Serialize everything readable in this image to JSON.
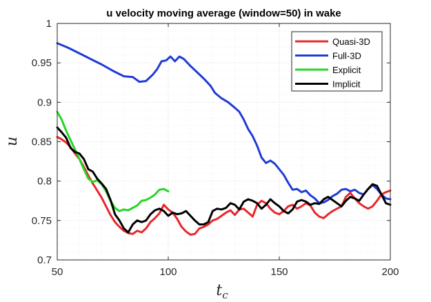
{
  "chart_data": {
    "type": "line",
    "title": "u velocity moving average (window=50) in wake",
    "xlabel": {
      "base": "t",
      "sub": "c"
    },
    "ylabel": "u",
    "xlim": [
      50,
      200
    ],
    "ylim": [
      0.7,
      1.0
    ],
    "xticks": [
      50,
      100,
      150,
      200
    ],
    "yticks": [
      0.7,
      0.75,
      0.8,
      0.85,
      0.9,
      0.95,
      1
    ],
    "xtick_labels": [
      "50",
      "100",
      "150",
      "200"
    ],
    "ytick_labels": [
      "0.7",
      "0.75",
      "0.8",
      "0.85",
      "0.9",
      "0.95",
      "1"
    ],
    "grid": true,
    "legend_position": "top-right",
    "series": [
      {
        "name": "Quasi-3D",
        "color": "#e8262a",
        "points": [
          [
            50,
            0.856
          ],
          [
            52,
            0.853
          ],
          [
            54,
            0.849
          ],
          [
            56,
            0.843
          ],
          [
            58,
            0.835
          ],
          [
            60,
            0.828
          ],
          [
            62,
            0.818
          ],
          [
            64,
            0.807
          ],
          [
            66,
            0.797
          ],
          [
            68,
            0.788
          ],
          [
            70,
            0.779
          ],
          [
            72,
            0.768
          ],
          [
            74,
            0.757
          ],
          [
            76,
            0.748
          ],
          [
            78,
            0.742
          ],
          [
            80,
            0.737
          ],
          [
            82,
            0.734
          ],
          [
            84,
            0.733
          ],
          [
            86,
            0.737
          ],
          [
            88,
            0.735
          ],
          [
            90,
            0.74
          ],
          [
            92,
            0.748
          ],
          [
            94,
            0.753
          ],
          [
            96,
            0.759
          ],
          [
            98,
            0.77
          ],
          [
            100,
            0.764
          ],
          [
            102,
            0.76
          ],
          [
            104,
            0.752
          ],
          [
            106,
            0.742
          ],
          [
            108,
            0.736
          ],
          [
            110,
            0.732
          ],
          [
            112,
            0.733
          ],
          [
            114,
            0.74
          ],
          [
            116,
            0.742
          ],
          [
            118,
            0.745
          ],
          [
            120,
            0.75
          ],
          [
            122,
            0.752
          ],
          [
            124,
            0.756
          ],
          [
            126,
            0.76
          ],
          [
            128,
            0.763
          ],
          [
            130,
            0.757
          ],
          [
            132,
            0.764
          ],
          [
            134,
            0.765
          ],
          [
            136,
            0.76
          ],
          [
            138,
            0.755
          ],
          [
            140,
            0.77
          ],
          [
            142,
            0.775
          ],
          [
            144,
            0.772
          ],
          [
            146,
            0.765
          ],
          [
            148,
            0.76
          ],
          [
            150,
            0.758
          ],
          [
            152,
            0.762
          ],
          [
            154,
            0.768
          ],
          [
            156,
            0.77
          ],
          [
            158,
            0.765
          ],
          [
            160,
            0.768
          ],
          [
            162,
            0.772
          ],
          [
            164,
            0.769
          ],
          [
            166,
            0.76
          ],
          [
            168,
            0.755
          ],
          [
            170,
            0.753
          ],
          [
            172,
            0.758
          ],
          [
            174,
            0.762
          ],
          [
            176,
            0.765
          ],
          [
            178,
            0.768
          ],
          [
            180,
            0.78
          ],
          [
            182,
            0.785
          ],
          [
            184,
            0.778
          ],
          [
            186,
            0.772
          ],
          [
            188,
            0.768
          ],
          [
            190,
            0.765
          ],
          [
            192,
            0.768
          ],
          [
            194,
            0.775
          ],
          [
            196,
            0.783
          ],
          [
            198,
            0.786
          ],
          [
            200,
            0.788
          ]
        ]
      },
      {
        "name": "Full-3D",
        "color": "#1f3ad6",
        "points": [
          [
            50,
            0.975
          ],
          [
            55,
            0.969
          ],
          [
            60,
            0.962
          ],
          [
            65,
            0.955
          ],
          [
            70,
            0.948
          ],
          [
            75,
            0.94
          ],
          [
            80,
            0.933
          ],
          [
            84,
            0.932
          ],
          [
            87,
            0.926
          ],
          [
            90,
            0.927
          ],
          [
            93,
            0.935
          ],
          [
            95,
            0.942
          ],
          [
            97,
            0.952
          ],
          [
            99,
            0.953
          ],
          [
            101,
            0.958
          ],
          [
            103,
            0.952
          ],
          [
            105,
            0.958
          ],
          [
            107,
            0.955
          ],
          [
            110,
            0.946
          ],
          [
            113,
            0.938
          ],
          [
            116,
            0.93
          ],
          [
            119,
            0.921
          ],
          [
            121,
            0.912
          ],
          [
            124,
            0.905
          ],
          [
            127,
            0.9
          ],
          [
            130,
            0.893
          ],
          [
            132,
            0.888
          ],
          [
            134,
            0.878
          ],
          [
            136,
            0.866
          ],
          [
            138,
            0.857
          ],
          [
            140,
            0.845
          ],
          [
            142,
            0.83
          ],
          [
            144,
            0.823
          ],
          [
            146,
            0.826
          ],
          [
            148,
            0.822
          ],
          [
            150,
            0.815
          ],
          [
            152,
            0.808
          ],
          [
            154,
            0.798
          ],
          [
            156,
            0.789
          ],
          [
            158,
            0.79
          ],
          [
            160,
            0.786
          ],
          [
            162,
            0.788
          ],
          [
            164,
            0.782
          ],
          [
            166,
            0.778
          ],
          [
            168,
            0.772
          ],
          [
            170,
            0.773
          ],
          [
            172,
            0.776
          ],
          [
            174,
            0.781
          ],
          [
            176,
            0.784
          ],
          [
            178,
            0.789
          ],
          [
            180,
            0.79
          ],
          [
            182,
            0.787
          ],
          [
            184,
            0.789
          ],
          [
            186,
            0.785
          ],
          [
            188,
            0.783
          ],
          [
            190,
            0.79
          ],
          [
            192,
            0.795
          ],
          [
            194,
            0.79
          ],
          [
            196,
            0.783
          ],
          [
            198,
            0.778
          ],
          [
            200,
            0.777
          ]
        ]
      },
      {
        "name": "Explicit",
        "color": "#25d625",
        "points": [
          [
            50,
            0.888
          ],
          [
            52,
            0.878
          ],
          [
            54,
            0.864
          ],
          [
            56,
            0.852
          ],
          [
            58,
            0.84
          ],
          [
            60,
            0.828
          ],
          [
            62,
            0.815
          ],
          [
            64,
            0.803
          ],
          [
            66,
            0.799
          ],
          [
            68,
            0.801
          ],
          [
            70,
            0.796
          ],
          [
            72,
            0.787
          ],
          [
            74,
            0.775
          ],
          [
            76,
            0.766
          ],
          [
            78,
            0.762
          ],
          [
            80,
            0.764
          ],
          [
            82,
            0.763
          ],
          [
            84,
            0.766
          ],
          [
            86,
            0.769
          ],
          [
            88,
            0.775
          ],
          [
            90,
            0.776
          ],
          [
            92,
            0.779
          ],
          [
            94,
            0.783
          ],
          [
            96,
            0.789
          ],
          [
            98,
            0.79
          ],
          [
            100,
            0.787
          ]
        ]
      },
      {
        "name": "Implicit",
        "color": "#000000",
        "points": [
          [
            50,
            0.868
          ],
          [
            52,
            0.862
          ],
          [
            54,
            0.855
          ],
          [
            56,
            0.842
          ],
          [
            58,
            0.837
          ],
          [
            60,
            0.835
          ],
          [
            62,
            0.828
          ],
          [
            64,
            0.815
          ],
          [
            66,
            0.812
          ],
          [
            68,
            0.803
          ],
          [
            70,
            0.797
          ],
          [
            72,
            0.79
          ],
          [
            74,
            0.776
          ],
          [
            76,
            0.758
          ],
          [
            78,
            0.75
          ],
          [
            80,
            0.74
          ],
          [
            82,
            0.735
          ],
          [
            84,
            0.745
          ],
          [
            86,
            0.75
          ],
          [
            88,
            0.748
          ],
          [
            90,
            0.75
          ],
          [
            92,
            0.758
          ],
          [
            94,
            0.763
          ],
          [
            96,
            0.765
          ],
          [
            98,
            0.762
          ],
          [
            100,
            0.756
          ],
          [
            102,
            0.76
          ],
          [
            104,
            0.758
          ],
          [
            106,
            0.759
          ],
          [
            108,
            0.762
          ],
          [
            110,
            0.756
          ],
          [
            112,
            0.75
          ],
          [
            114,
            0.745
          ],
          [
            116,
            0.745
          ],
          [
            118,
            0.748
          ],
          [
            120,
            0.762
          ],
          [
            122,
            0.765
          ],
          [
            124,
            0.764
          ],
          [
            126,
            0.766
          ],
          [
            128,
            0.772
          ],
          [
            130,
            0.77
          ],
          [
            132,
            0.764
          ],
          [
            134,
            0.774
          ],
          [
            136,
            0.777
          ],
          [
            138,
            0.775
          ],
          [
            140,
            0.772
          ],
          [
            142,
            0.765
          ],
          [
            144,
            0.77
          ],
          [
            146,
            0.777
          ],
          [
            148,
            0.772
          ],
          [
            150,
            0.768
          ],
          [
            152,
            0.762
          ],
          [
            154,
            0.759
          ],
          [
            156,
            0.764
          ],
          [
            158,
            0.774
          ],
          [
            160,
            0.776
          ],
          [
            162,
            0.774
          ],
          [
            164,
            0.77
          ],
          [
            166,
            0.772
          ],
          [
            168,
            0.771
          ],
          [
            170,
            0.777
          ],
          [
            172,
            0.78
          ],
          [
            174,
            0.776
          ],
          [
            176,
            0.772
          ],
          [
            178,
            0.768
          ],
          [
            180,
            0.775
          ],
          [
            182,
            0.78
          ],
          [
            184,
            0.778
          ],
          [
            186,
            0.775
          ],
          [
            188,
            0.783
          ],
          [
            190,
            0.79
          ],
          [
            192,
            0.796
          ],
          [
            194,
            0.794
          ],
          [
            196,
            0.783
          ],
          [
            198,
            0.772
          ],
          [
            200,
            0.77
          ]
        ]
      }
    ]
  }
}
